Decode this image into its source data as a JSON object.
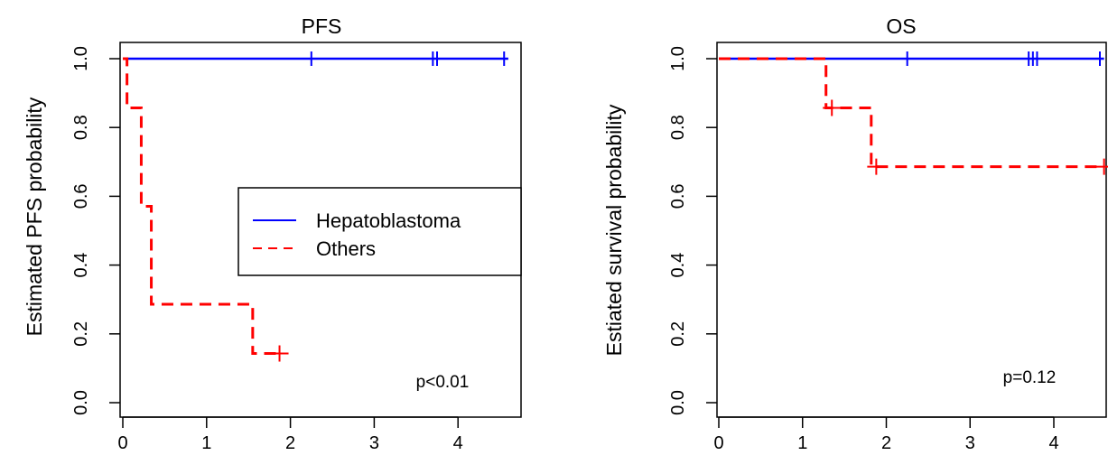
{
  "chart_data": [
    {
      "type": "line",
      "title": "PFS",
      "xlabel": "",
      "ylabel": "Estimated PFS probability",
      "xlim": [
        0,
        4.6
      ],
      "ylim": [
        0,
        1
      ],
      "x_ticks": [
        "0",
        "1",
        "2",
        "3",
        "4"
      ],
      "y_ticks": [
        "0.0",
        "0.2",
        "0.4",
        "0.6",
        "0.8",
        "1.0"
      ],
      "annotation": "p<0.01",
      "legend": {
        "position": "center-right",
        "entries": [
          "Hepatoblastoma",
          "Others"
        ]
      },
      "series": [
        {
          "name": "Hepatoblastoma",
          "color": "#0000ff",
          "linestyle": "solid",
          "steps": [
            [
              0,
              1.0
            ],
            [
              4.6,
              1.0
            ]
          ],
          "censor": [
            [
              2.25,
              1.0
            ],
            [
              3.7,
              1.0
            ],
            [
              3.75,
              1.0
            ],
            [
              4.55,
              1.0
            ]
          ]
        },
        {
          "name": "Others",
          "color": "#ff0000",
          "linestyle": "dashed",
          "steps": [
            [
              0,
              1.0
            ],
            [
              0.05,
              0.857
            ],
            [
              0.22,
              0.571
            ],
            [
              0.34,
              0.286
            ],
            [
              1.55,
              0.143
            ],
            [
              1.87,
              0.143
            ]
          ],
          "censor": [
            [
              1.87,
              0.143
            ]
          ]
        }
      ]
    },
    {
      "type": "line",
      "title": "OS",
      "xlabel": "",
      "ylabel": "Estiated survival probability",
      "xlim": [
        0,
        4.6
      ],
      "ylim": [
        0,
        1
      ],
      "x_ticks": [
        "0",
        "1",
        "2",
        "3",
        "4"
      ],
      "y_ticks": [
        "0.0",
        "0.2",
        "0.4",
        "0.6",
        "0.8",
        "1.0"
      ],
      "annotation": "p=0.12",
      "series": [
        {
          "name": "Hepatoblastoma",
          "color": "#0000ff",
          "linestyle": "solid",
          "steps": [
            [
              0,
              1.0
            ],
            [
              4.6,
              1.0
            ]
          ],
          "censor": [
            [
              2.25,
              1.0
            ],
            [
              3.7,
              1.0
            ],
            [
              3.75,
              1.0
            ],
            [
              3.8,
              1.0
            ],
            [
              4.55,
              1.0
            ]
          ]
        },
        {
          "name": "Others",
          "color": "#ff0000",
          "linestyle": "dashed",
          "steps": [
            [
              0,
              1.0
            ],
            [
              1.28,
              0.857
            ],
            [
              1.82,
              0.686
            ],
            [
              4.6,
              0.686
            ]
          ],
          "censor": [
            [
              1.35,
              0.857
            ],
            [
              1.88,
              0.686
            ],
            [
              4.6,
              0.686
            ]
          ]
        }
      ]
    }
  ]
}
